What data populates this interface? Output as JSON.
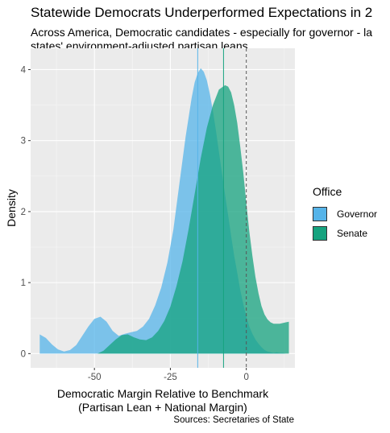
{
  "title": "Statewide Democrats Underperformed Expectations in 2",
  "subtitle_lines": [
    "Across America, Democratic candidates - especially for governor - la",
    "states' environment-adjusted partisan leans"
  ],
  "caption": "Sources: Secretaries of State",
  "legend": {
    "title": "Office",
    "items": [
      {
        "label": "Governor",
        "color": "#56B4E9"
      },
      {
        "label": "Senate",
        "color": "#16A37F"
      }
    ]
  },
  "chart_data": {
    "type": "area",
    "xlabel": [
      "Democratic Margin Relative to Benchmark",
      "(Partisan Lean + National Margin)"
    ],
    "ylabel": "Density",
    "xlim": [
      -71,
      16
    ],
    "ylim": [
      -0.2,
      4.3
    ],
    "x_ticks": [
      -50,
      -25,
      0
    ],
    "x_tick_labels": [
      "-50",
      "-25",
      "0"
    ],
    "y_ticks": [
      0,
      1,
      2,
      3,
      4
    ],
    "y_tick_labels": [
      "0",
      "1",
      "2",
      "3",
      "4"
    ],
    "grid": true,
    "background": "#EBEBEB",
    "reference_line": {
      "x": 0,
      "style": "dashed",
      "color": "#555555"
    },
    "series": [
      {
        "name": "Governor",
        "color": "#56B4E9",
        "mean": -16,
        "points": [
          [
            -68,
            0.27
          ],
          [
            -66,
            0.22
          ],
          [
            -64,
            0.13
          ],
          [
            -62,
            0.06
          ],
          [
            -60,
            0.03
          ],
          [
            -58,
            0.05
          ],
          [
            -56,
            0.12
          ],
          [
            -54,
            0.25
          ],
          [
            -52,
            0.38
          ],
          [
            -50,
            0.49
          ],
          [
            -48,
            0.52
          ],
          [
            -46,
            0.45
          ],
          [
            -44,
            0.32
          ],
          [
            -42,
            0.25
          ],
          [
            -40,
            0.28
          ],
          [
            -38,
            0.3
          ],
          [
            -36,
            0.32
          ],
          [
            -34,
            0.38
          ],
          [
            -32,
            0.49
          ],
          [
            -30,
            0.68
          ],
          [
            -28,
            0.93
          ],
          [
            -26,
            1.28
          ],
          [
            -24,
            1.75
          ],
          [
            -22,
            2.4
          ],
          [
            -20,
            3.05
          ],
          [
            -18,
            3.6
          ],
          [
            -17,
            3.82
          ],
          [
            -16,
            3.95
          ],
          [
            -15,
            4.02
          ],
          [
            -14,
            3.97
          ],
          [
            -13,
            3.85
          ],
          [
            -12,
            3.66
          ],
          [
            -11,
            3.42
          ],
          [
            -10,
            3.14
          ],
          [
            -9,
            2.84
          ],
          [
            -8,
            2.54
          ],
          [
            -7,
            2.24
          ],
          [
            -6,
            1.95
          ],
          [
            -5,
            1.66
          ],
          [
            -4,
            1.38
          ],
          [
            -3,
            1.14
          ],
          [
            -2,
            0.9
          ],
          [
            -1,
            0.7
          ],
          [
            0,
            0.52
          ],
          [
            1,
            0.38
          ],
          [
            2,
            0.28
          ],
          [
            3,
            0.2
          ],
          [
            4,
            0.14
          ],
          [
            5,
            0.09
          ],
          [
            6,
            0.05
          ],
          [
            7,
            0.03
          ],
          [
            8,
            0.02
          ],
          [
            9,
            0.01
          ],
          [
            10,
            0.02
          ],
          [
            11,
            0.01
          ],
          [
            12,
            0.01
          ],
          [
            13,
            0.0
          ],
          [
            14,
            0.0
          ]
        ]
      },
      {
        "name": "Senate",
        "color": "#16A37F",
        "mean": -7.5,
        "points": [
          [
            -49,
            0.0
          ],
          [
            -47,
            0.04
          ],
          [
            -45,
            0.12
          ],
          [
            -43,
            0.2
          ],
          [
            -41,
            0.26
          ],
          [
            -39,
            0.27
          ],
          [
            -37,
            0.23
          ],
          [
            -35,
            0.2
          ],
          [
            -33,
            0.19
          ],
          [
            -31,
            0.23
          ],
          [
            -29,
            0.32
          ],
          [
            -27,
            0.46
          ],
          [
            -25,
            0.66
          ],
          [
            -23,
            0.95
          ],
          [
            -21,
            1.3
          ],
          [
            -19,
            1.75
          ],
          [
            -17,
            2.25
          ],
          [
            -15,
            2.75
          ],
          [
            -13,
            3.18
          ],
          [
            -11,
            3.5
          ],
          [
            -9,
            3.72
          ],
          [
            -7,
            3.78
          ],
          [
            -6,
            3.76
          ],
          [
            -5,
            3.68
          ],
          [
            -4,
            3.5
          ],
          [
            -3,
            3.25
          ],
          [
            -2,
            2.92
          ],
          [
            -1,
            2.55
          ],
          [
            0,
            2.12
          ],
          [
            1,
            1.72
          ],
          [
            2,
            1.38
          ],
          [
            3,
            1.08
          ],
          [
            4,
            0.85
          ],
          [
            5,
            0.67
          ],
          [
            6,
            0.55
          ],
          [
            7,
            0.48
          ],
          [
            8,
            0.44
          ],
          [
            9,
            0.42
          ],
          [
            10,
            0.42
          ],
          [
            11,
            0.42
          ],
          [
            12,
            0.43
          ],
          [
            13,
            0.44
          ],
          [
            14,
            0.45
          ]
        ]
      }
    ]
  }
}
